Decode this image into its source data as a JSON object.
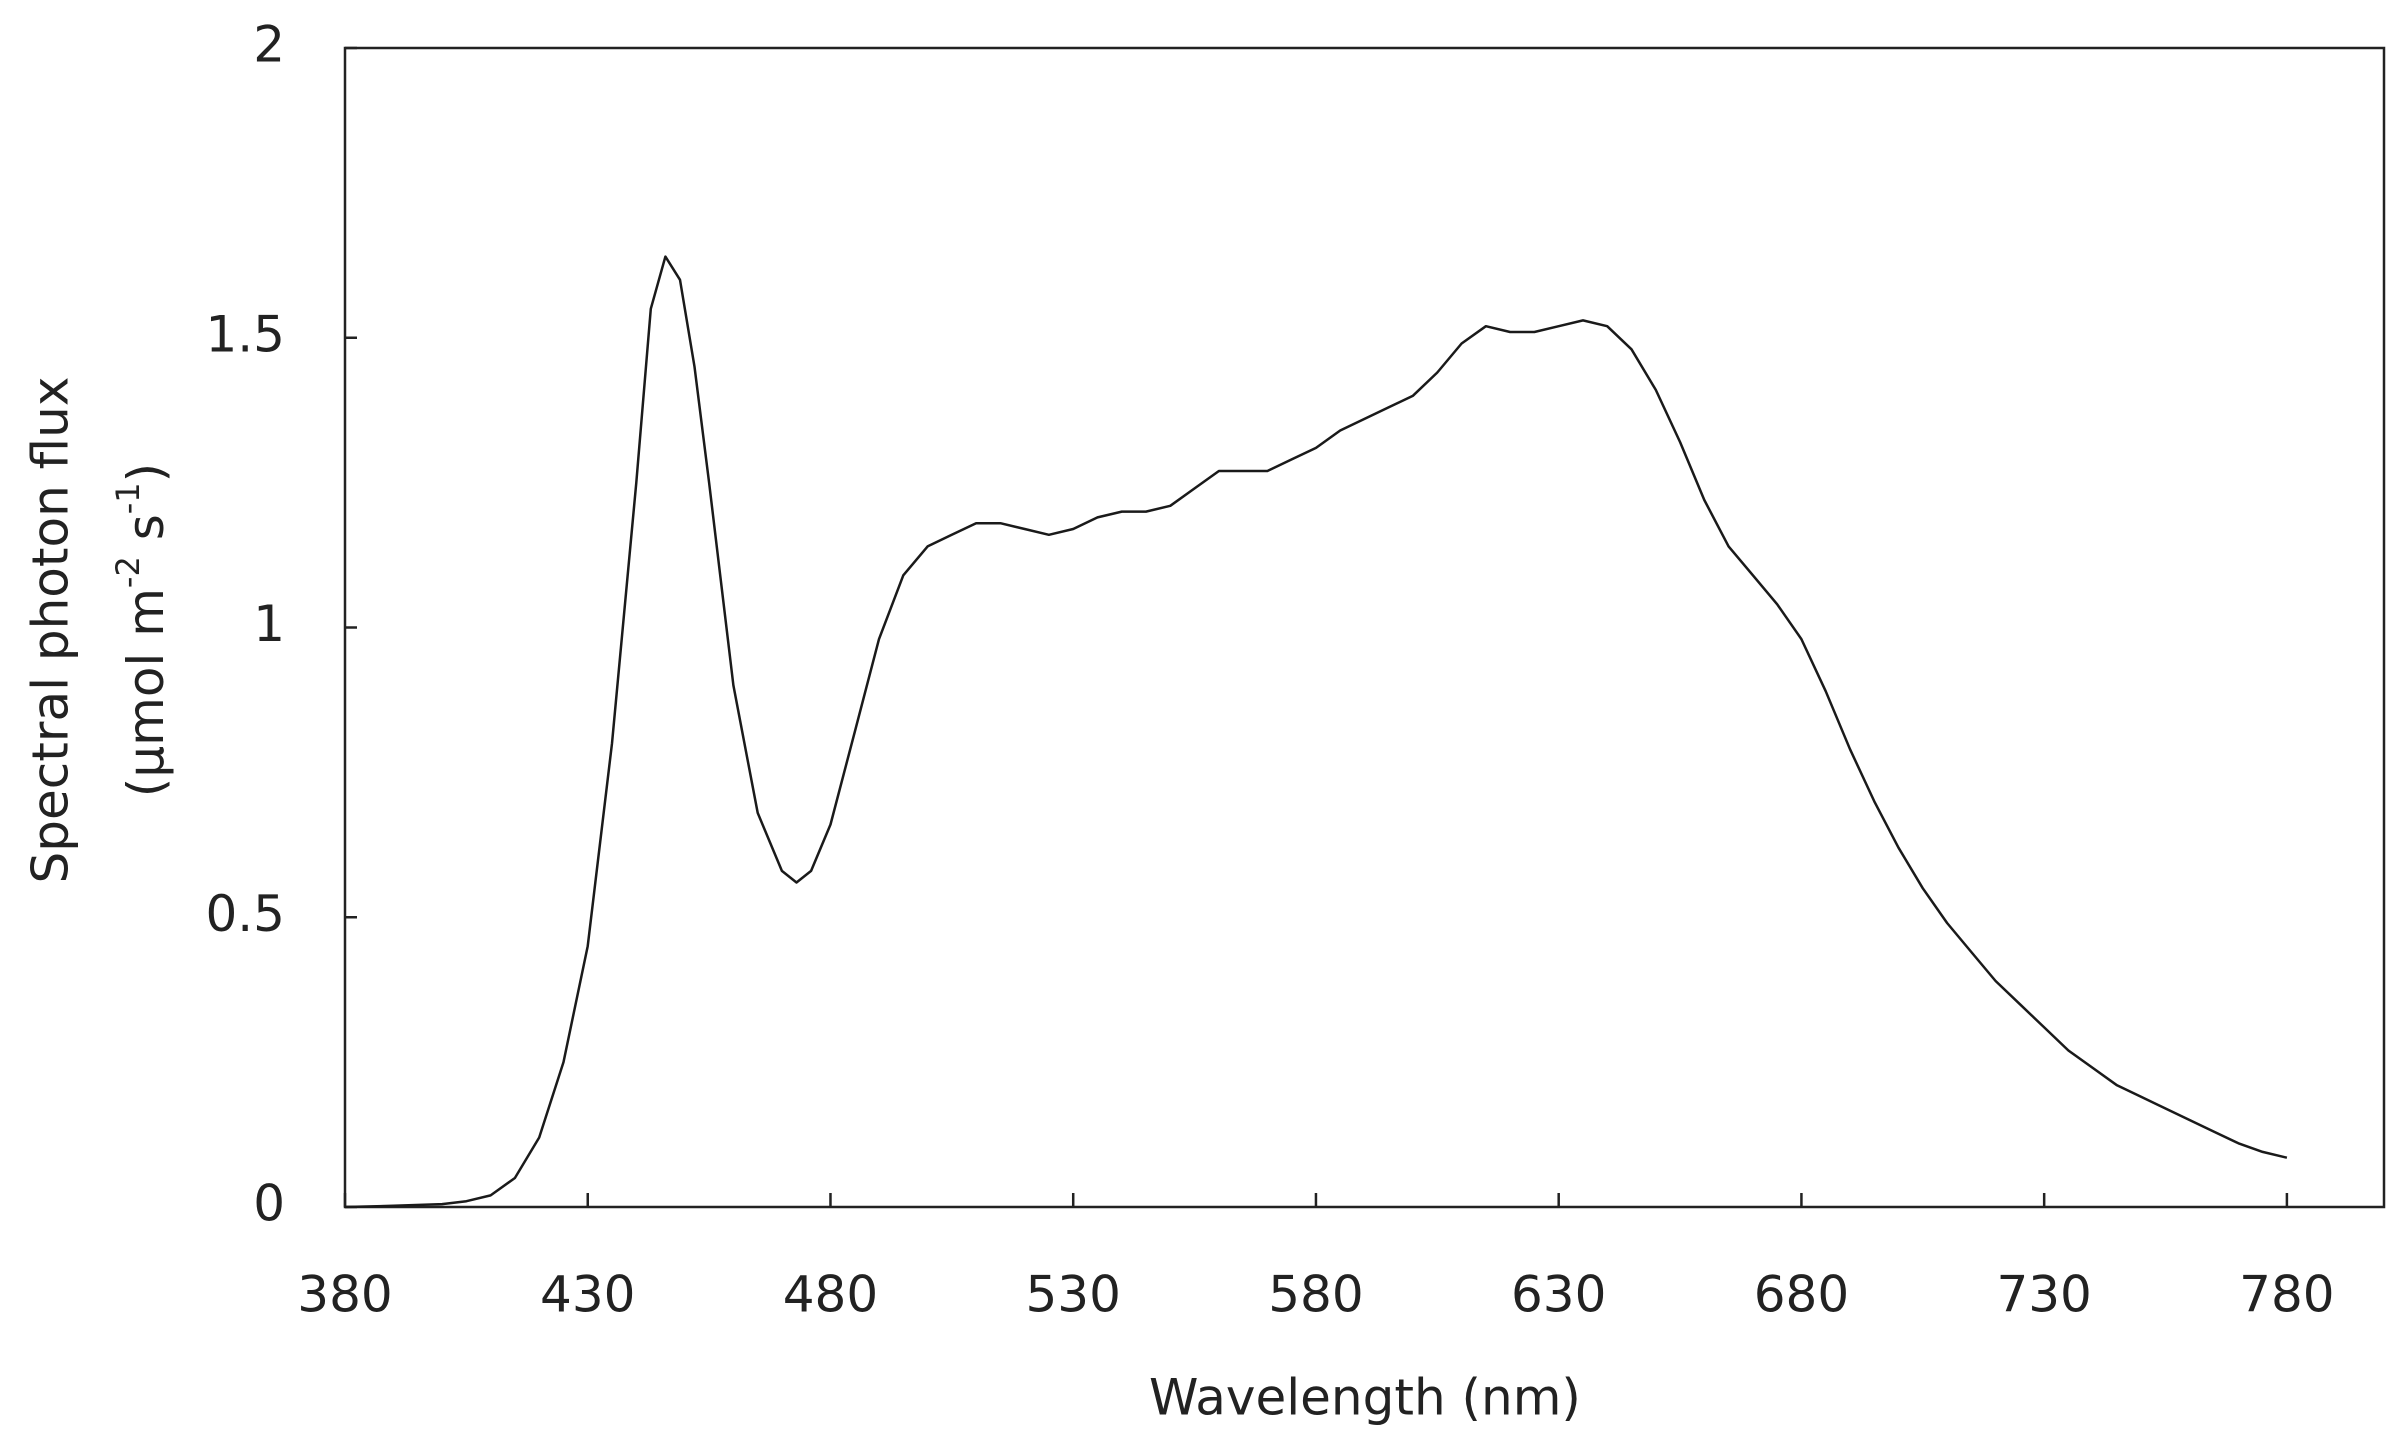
{
  "chart_data": {
    "type": "line",
    "x_label": "Wavelength (nm)",
    "y_label": {
      "line1": "Spectral photon flux",
      "line2": [
        "(µmol m",
        "-2",
        " s",
        "-1",
        ")"
      ]
    },
    "xlim": [
      380,
      800
    ],
    "xticks": [
      380,
      430,
      480,
      530,
      580,
      630,
      680,
      730,
      780
    ],
    "ylim": [
      0,
      2
    ],
    "yticks": [
      0,
      0.5,
      1,
      1.5,
      2
    ],
    "grid": false,
    "x": [
      380,
      390,
      400,
      405,
      410,
      415,
      420,
      425,
      430,
      435,
      440,
      443,
      446,
      449,
      452,
      455,
      460,
      465,
      470,
      473,
      476,
      480,
      485,
      490,
      495,
      500,
      505,
      510,
      515,
      520,
      525,
      530,
      535,
      540,
      545,
      550,
      555,
      560,
      565,
      570,
      575,
      580,
      585,
      590,
      595,
      600,
      605,
      610,
      615,
      620,
      625,
      630,
      635,
      640,
      645,
      650,
      655,
      660,
      665,
      670,
      675,
      680,
      685,
      690,
      695,
      700,
      705,
      710,
      715,
      720,
      725,
      730,
      735,
      740,
      745,
      750,
      755,
      760,
      765,
      770,
      775,
      780
    ],
    "series": [
      {
        "color": "#1a1a1a",
        "values": [
          0,
          0.002,
          0.005,
          0.01,
          0.02,
          0.05,
          0.12,
          0.25,
          0.45,
          0.8,
          1.25,
          1.55,
          1.64,
          1.6,
          1.45,
          1.25,
          0.9,
          0.68,
          0.58,
          0.56,
          0.58,
          0.66,
          0.82,
          0.98,
          1.09,
          1.14,
          1.16,
          1.18,
          1.18,
          1.17,
          1.16,
          1.17,
          1.19,
          1.2,
          1.2,
          1.21,
          1.24,
          1.27,
          1.27,
          1.27,
          1.29,
          1.31,
          1.34,
          1.36,
          1.38,
          1.4,
          1.44,
          1.49,
          1.52,
          1.51,
          1.51,
          1.52,
          1.53,
          1.52,
          1.48,
          1.41,
          1.32,
          1.22,
          1.14,
          1.09,
          1.04,
          0.98,
          0.89,
          0.79,
          0.7,
          0.62,
          0.55,
          0.49,
          0.44,
          0.39,
          0.35,
          0.31,
          0.27,
          0.24,
          0.21,
          0.19,
          0.17,
          0.15,
          0.13,
          0.11,
          0.095,
          0.085
        ]
      }
    ]
  }
}
